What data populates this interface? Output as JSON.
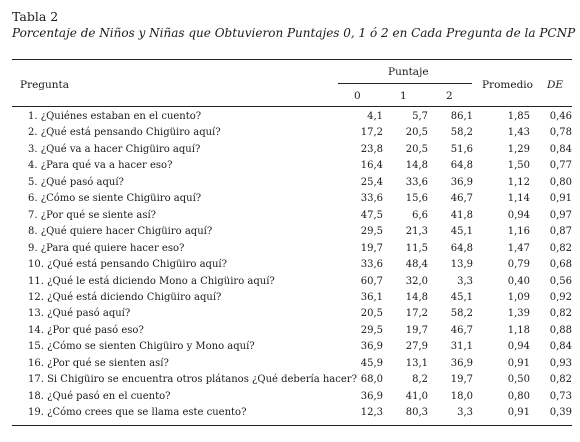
{
  "table": {
    "label": "Tabla 2",
    "caption": "Porcentaje de Niños y Niñas que Obtuvieron Puntajes 0, 1 ó 2 en Cada Pregunta de la PCNP",
    "headers": {
      "pregunta": "Pregunta",
      "puntaje": "Puntaje",
      "s0": "0",
      "s1": "1",
      "s2": "2",
      "promedio": "Promedio",
      "de": "DE"
    },
    "rows": [
      {
        "pregunta": "1. ¿Quiénes estaban en el cuento?",
        "s0": "4,1",
        "s1": "5,7",
        "s2": "86,1",
        "promedio": "1,85",
        "de": "0,46"
      },
      {
        "pregunta": "2. ¿Qué está pensando Chigüiro aquí?",
        "s0": "17,2",
        "s1": "20,5",
        "s2": "58,2",
        "promedio": "1,43",
        "de": "0,78"
      },
      {
        "pregunta": "3. ¿Qué va a hacer Chigüiro aquí?",
        "s0": "23,8",
        "s1": "20,5",
        "s2": "51,6",
        "promedio": "1,29",
        "de": "0,84"
      },
      {
        "pregunta": "4. ¿Para qué va a hacer eso?",
        "s0": "16,4",
        "s1": "14,8",
        "s2": "64,8",
        "promedio": "1,50",
        "de": "0,77"
      },
      {
        "pregunta": "5. ¿Qué pasó aquí?",
        "s0": "25,4",
        "s1": "33,6",
        "s2": "36,9",
        "promedio": "1,12",
        "de": "0,80"
      },
      {
        "pregunta": "6. ¿Cómo se siente Chigüiro aquí?",
        "s0": "33,6",
        "s1": "15,6",
        "s2": "46,7",
        "promedio": "1,14",
        "de": "0,91"
      },
      {
        "pregunta": "7. ¿Por qué se siente así?",
        "s0": "47,5",
        "s1": "6,6",
        "s2": "41,8",
        "promedio": "0,94",
        "de": "0,97"
      },
      {
        "pregunta": "8. ¿Qué quiere hacer Chigüiro aquí?",
        "s0": "29,5",
        "s1": "21,3",
        "s2": "45,1",
        "promedio": "1,16",
        "de": "0,87"
      },
      {
        "pregunta": "9. ¿Para qué quiere hacer eso?",
        "s0": "19,7",
        "s1": "11,5",
        "s2": "64,8",
        "promedio": "1,47",
        "de": "0,82"
      },
      {
        "pregunta": "10. ¿Qué está pensando Chigüiro aquí?",
        "s0": "33,6",
        "s1": "48,4",
        "s2": "13,9",
        "promedio": "0,79",
        "de": "0,68"
      },
      {
        "pregunta": "11. ¿Qué le está diciendo Mono a Chigüiro aquí?",
        "s0": "60,7",
        "s1": "32,0",
        "s2": "3,3",
        "promedio": "0,40",
        "de": "0,56"
      },
      {
        "pregunta": "12. ¿Qué está diciendo Chigüiro aquí?",
        "s0": "36,1",
        "s1": "14,8",
        "s2": "45,1",
        "promedio": "1,09",
        "de": "0,92"
      },
      {
        "pregunta": "13. ¿Qué pasó aquí?",
        "s0": "20,5",
        "s1": "17,2",
        "s2": "58,2",
        "promedio": "1,39",
        "de": "0,82"
      },
      {
        "pregunta": "14. ¿Por qué pasó eso?",
        "s0": "29,5",
        "s1": "19,7",
        "s2": "46,7",
        "promedio": "1,18",
        "de": "0,88"
      },
      {
        "pregunta": "15. ¿Cómo se sienten Chigüiro y Mono aquí?",
        "s0": "36,9",
        "s1": "27,9",
        "s2": "31,1",
        "promedio": "0,94",
        "de": "0,84"
      },
      {
        "pregunta": "16. ¿Por qué se sienten así?",
        "s0": "45,9",
        "s1": "13,1",
        "s2": "36,9",
        "promedio": "0,91",
        "de": "0,93"
      },
      {
        "pregunta": "17. Si Chigüiro se encuentra otros plátanos ¿Qué debería hacer?",
        "s0": "68,0",
        "s1": "8,2",
        "s2": "19,7",
        "promedio": "0,50",
        "de": "0,82"
      },
      {
        "pregunta": "18. ¿Qué pasó en el cuento?",
        "s0": "36,9",
        "s1": "41,0",
        "s2": "18,0",
        "promedio": "0,80",
        "de": "0,73"
      },
      {
        "pregunta": "19. ¿Cómo crees que se llama este cuento?",
        "s0": "12,3",
        "s1": "80,3",
        "s2": "3,3",
        "promedio": "0,91",
        "de": "0,39"
      }
    ]
  }
}
